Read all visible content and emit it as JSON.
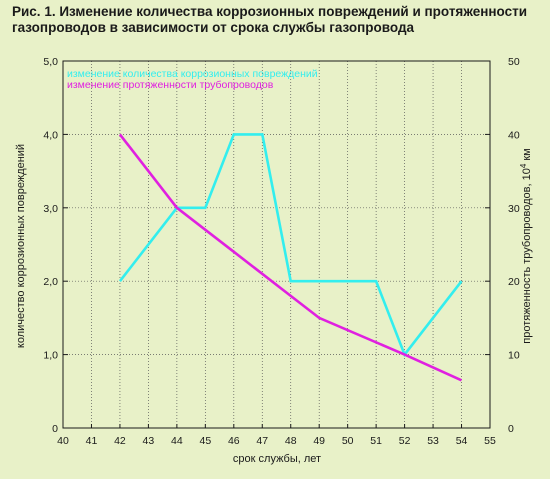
{
  "title_line1": "Рис. 1. Изменение количества коррозионных повреждений и протяженности",
  "title_line2": "газопроводов в зависимости от срока службы газопровода",
  "colors": {
    "background": "#e8f1c8",
    "cyan": "#33eeee",
    "magenta": "#e020e0",
    "axis": "#1a1a1a"
  },
  "chart_data": {
    "type": "line",
    "xlabel": "срок службы, лет",
    "ylabel_left": "количество коррозионных повреждений",
    "ylabel_right_main": "протяженность трубопроводов, 10",
    "ylabel_right_sup": "4",
    "ylabel_right_unit": " км",
    "x_ticks": [
      "40",
      "41",
      "42",
      "43",
      "44",
      "45",
      "46",
      "47",
      "48",
      "49",
      "50",
      "51",
      "52",
      "53",
      "54",
      "55"
    ],
    "y_left_ticks": [
      "0",
      "1,0",
      "2,0",
      "3,0",
      "4,0",
      "5,0"
    ],
    "y_right_ticks": [
      "0",
      "10",
      "20",
      "30",
      "40",
      "50"
    ],
    "xlim": [
      40,
      55
    ],
    "ylim_left": [
      0,
      5
    ],
    "ylim_right": [
      0,
      50
    ],
    "legend_position": "top-left",
    "series": [
      {
        "name": "изменение количества коррозионных повреждений",
        "axis": "left",
        "color": "cyan",
        "points": [
          [
            42,
            2.0
          ],
          [
            44,
            3.0
          ],
          [
            45,
            3.0
          ],
          [
            46,
            4.0
          ],
          [
            47,
            4.0
          ],
          [
            48,
            2.0
          ],
          [
            51,
            2.0
          ],
          [
            52,
            1.0
          ],
          [
            54,
            2.0
          ]
        ]
      },
      {
        "name": "изменение протяженности трубопроводов",
        "axis": "right",
        "color": "magenta",
        "points": [
          [
            42,
            40
          ],
          [
            44,
            30
          ],
          [
            46,
            24
          ],
          [
            48,
            18
          ],
          [
            49,
            15
          ],
          [
            52,
            10
          ],
          [
            54,
            6.5
          ]
        ]
      }
    ]
  }
}
